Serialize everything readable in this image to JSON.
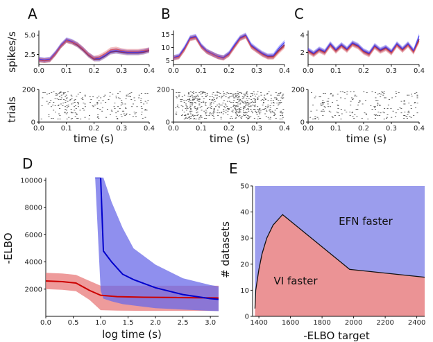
{
  "chart_data": [
    {
      "panel": "A",
      "type": "line",
      "ylabel": "spikes/s",
      "xlim": [
        0,
        0.4
      ],
      "xticks": [
        "0.0",
        "0.1",
        "0.2",
        "0.3",
        "0.4"
      ],
      "ylim": [
        1.2,
        5.6
      ],
      "yticks": [
        "2.5",
        "5.0"
      ],
      "x": [
        0,
        0.02,
        0.04,
        0.06,
        0.08,
        0.1,
        0.12,
        0.14,
        0.16,
        0.18,
        0.2,
        0.22,
        0.24,
        0.26,
        0.28,
        0.3,
        0.32,
        0.34,
        0.36,
        0.38,
        0.4
      ],
      "series": [
        {
          "values": [
            1.8,
            1.7,
            1.8,
            2.6,
            3.6,
            4.3,
            4.1,
            3.7,
            3.1,
            2.4,
            1.9,
            1.9,
            2.3,
            2.8,
            2.9,
            2.8,
            2.7,
            2.7,
            2.7,
            2.8,
            3.0
          ],
          "color": "#7a2a5e"
        },
        {
          "values": [
            1.9,
            1.8,
            1.9,
            2.7,
            3.7,
            4.4,
            4.2,
            3.8,
            3.2,
            2.5,
            2.0,
            2.0,
            2.4,
            2.9,
            3.0,
            2.9,
            2.8,
            2.8,
            2.8,
            2.9,
            3.1
          ],
          "color": "#3a3aff"
        },
        {
          "values": [
            1.8,
            1.7,
            1.8,
            2.6,
            3.6,
            4.3,
            4.1,
            3.8,
            3.2,
            2.5,
            2.0,
            2.2,
            2.6,
            3.1,
            3.2,
            3.0,
            2.9,
            2.9,
            2.9,
            3.0,
            3.1
          ],
          "color": "#e05050"
        }
      ]
    },
    {
      "panel": "B",
      "type": "line",
      "xlim": [
        0,
        0.4
      ],
      "xticks": [
        "0.0",
        "0.1",
        "0.2",
        "0.3",
        "0.4"
      ],
      "ylim": [
        3.5,
        16.5
      ],
      "yticks": [
        "5",
        "10",
        "15"
      ],
      "x": [
        0,
        0.02,
        0.04,
        0.06,
        0.08,
        0.1,
        0.12,
        0.14,
        0.16,
        0.18,
        0.2,
        0.22,
        0.24,
        0.26,
        0.28,
        0.3,
        0.32,
        0.34,
        0.36,
        0.38,
        0.4
      ],
      "series": [
        {
          "values": [
            6.0,
            6.5,
            9.5,
            13.5,
            14.0,
            10.5,
            8.5,
            7.5,
            6.5,
            6.0,
            7.5,
            10.5,
            13.5,
            14.5,
            10.5,
            9.0,
            7.5,
            6.5,
            6.5,
            9.0,
            11.0
          ],
          "color": "#7a2a5e"
        },
        {
          "values": [
            6.2,
            6.8,
            10.0,
            13.8,
            14.3,
            10.8,
            8.7,
            7.6,
            6.6,
            6.2,
            7.8,
            11.0,
            13.8,
            14.8,
            11.0,
            9.3,
            7.8,
            6.8,
            7.0,
            9.8,
            12.0
          ],
          "color": "#3a3aff"
        },
        {
          "values": [
            6.0,
            6.4,
            9.3,
            13.3,
            13.8,
            10.3,
            8.4,
            7.4,
            6.4,
            5.9,
            7.3,
            10.3,
            13.3,
            14.3,
            10.3,
            8.8,
            7.3,
            6.3,
            6.3,
            8.5,
            10.5
          ],
          "color": "#e05050"
        }
      ]
    },
    {
      "panel": "C",
      "type": "line",
      "xlim": [
        0,
        0.4
      ],
      "xticks": [
        "0.0",
        "0.1",
        "0.2",
        "0.3",
        "0.4"
      ],
      "ylim": [
        0.6,
        4.5
      ],
      "yticks": [
        "2",
        "4"
      ],
      "x": [
        0,
        0.02,
        0.04,
        0.06,
        0.08,
        0.1,
        0.12,
        0.14,
        0.16,
        0.18,
        0.2,
        0.22,
        0.24,
        0.26,
        0.28,
        0.3,
        0.32,
        0.34,
        0.36,
        0.38,
        0.4
      ],
      "series": [
        {
          "values": [
            2.2,
            1.8,
            2.3,
            2.0,
            2.9,
            2.2,
            2.8,
            2.3,
            3.0,
            2.7,
            2.1,
            1.8,
            2.7,
            2.2,
            2.5,
            2.0,
            2.9,
            2.3,
            2.9,
            2.1,
            3.5
          ],
          "color": "#7a2a5e"
        },
        {
          "values": [
            2.3,
            1.9,
            2.4,
            2.1,
            3.0,
            2.3,
            2.9,
            2.4,
            3.1,
            2.8,
            2.2,
            1.9,
            2.8,
            2.3,
            2.6,
            2.1,
            3.0,
            2.4,
            3.0,
            2.2,
            3.9
          ],
          "color": "#3a3aff"
        },
        {
          "values": [
            2.1,
            1.7,
            2.2,
            1.9,
            2.8,
            2.1,
            2.7,
            2.2,
            2.9,
            2.6,
            2.0,
            1.7,
            2.6,
            2.1,
            2.4,
            1.9,
            2.8,
            2.2,
            2.8,
            2.0,
            3.3
          ],
          "color": "#e05050"
        }
      ]
    },
    {
      "panel": "A-raster",
      "type": "scatter",
      "ylabel": "trials",
      "xlabel": "time (s)",
      "xlim": [
        0,
        0.4
      ],
      "xticks": [
        "0.0",
        "0.1",
        "0.2",
        "0.3",
        "0.4"
      ],
      "ylim": [
        0,
        200
      ],
      "yticks": [
        "0",
        "200"
      ],
      "rate_profile": [
        1.8,
        1.7,
        1.8,
        2.6,
        3.6,
        4.3,
        4.1,
        3.7,
        3.1,
        2.4,
        1.9,
        1.9,
        2.3,
        2.8,
        2.9,
        2.8,
        2.7,
        2.7,
        2.7,
        2.8,
        3.0
      ],
      "density": 0.35
    },
    {
      "panel": "B-raster",
      "type": "scatter",
      "xlabel": "time (s)",
      "xlim": [
        0,
        0.4
      ],
      "xticks": [
        "0.0",
        "0.1",
        "0.2",
        "0.3",
        "0.4"
      ],
      "ylim": [
        0,
        200
      ],
      "yticks": [
        "0",
        "200"
      ],
      "rate_profile": [
        6.0,
        6.5,
        9.5,
        13.5,
        14.0,
        10.5,
        8.5,
        7.5,
        6.5,
        6.0,
        7.5,
        10.5,
        13.5,
        14.5,
        10.5,
        9.0,
        7.5,
        6.5,
        6.5,
        9.0,
        11.0
      ],
      "density": 0.85
    },
    {
      "panel": "C-raster",
      "type": "scatter",
      "xlabel": "time (s)",
      "xlim": [
        0,
        0.4
      ],
      "xticks": [
        "0.0",
        "0.1",
        "0.2",
        "0.3",
        "0.4"
      ],
      "ylim": [
        0,
        200
      ],
      "yticks": [
        "0",
        "200"
      ],
      "rate_profile": [
        2.2,
        1.8,
        2.3,
        2.0,
        2.9,
        2.2,
        2.8,
        2.3,
        3.0,
        2.7,
        2.1,
        1.8,
        2.7,
        2.2,
        2.5,
        2.0,
        2.9,
        2.3,
        2.9,
        2.1,
        3.5
      ],
      "density": 0.3
    },
    {
      "panel": "D",
      "type": "line",
      "xlabel": "log time (s)",
      "ylabel": "-ELBO",
      "xlim": [
        0,
        3.15
      ],
      "xticks": [
        "0.0",
        "0.5",
        "1.0",
        "1.5",
        "2.0",
        "2.5",
        "3.0"
      ],
      "ylim": [
        0,
        10200
      ],
      "yticks": [
        "2000",
        "4000",
        "6000",
        "8000",
        "10000"
      ],
      "series": [
        {
          "color": "#0000cc",
          "band_color": "#6a6ae8",
          "x": [
            0.9,
            1.0,
            1.05,
            1.2,
            1.4,
            1.6,
            2.0,
            2.5,
            3.0,
            3.15
          ],
          "values": [
            10200,
            10200,
            4800,
            4000,
            3100,
            2700,
            2100,
            1600,
            1300,
            1250
          ],
          "upper": [
            10200,
            10200,
            10200,
            8400,
            6500,
            5000,
            3800,
            2800,
            2300,
            2200
          ],
          "lower": [
            10200,
            1900,
            1300,
            1100,
            900,
            800,
            600,
            500,
            400,
            380
          ]
        },
        {
          "color": "#cc0000",
          "band_color": "#e87a7a",
          "x": [
            0,
            0.3,
            0.55,
            0.8,
            1.0,
            1.3,
            1.8,
            2.4,
            3.0,
            3.15
          ],
          "values": [
            2600,
            2550,
            2450,
            1900,
            1550,
            1450,
            1400,
            1380,
            1360,
            1350
          ],
          "upper": [
            3200,
            3150,
            3050,
            2600,
            2250,
            2250,
            2250,
            2250,
            2250,
            2250
          ],
          "lower": [
            2000,
            1950,
            1850,
            1200,
            450,
            420,
            400,
            400,
            400,
            400
          ]
        }
      ]
    },
    {
      "panel": "E",
      "type": "area",
      "xlabel": "-ELBO target",
      "ylabel": "# datasets",
      "xlim": [
        1360,
        2450
      ],
      "xticks": [
        "1400",
        "1600",
        "1800",
        "2000",
        "2200",
        "2400"
      ],
      "ylim": [
        0,
        50
      ],
      "yticks": [
        "0",
        "10",
        "20",
        "30",
        "40",
        "50"
      ],
      "boundary": {
        "x": [
          1375,
          1380,
          1400,
          1420,
          1450,
          1490,
          1550,
          1975,
          2450
        ],
        "y": [
          3,
          10,
          18,
          24,
          30,
          35,
          39,
          18,
          15
        ]
      },
      "regions": [
        {
          "label": "EFN faster",
          "color": "#9b9ded"
        },
        {
          "label": "VI faster",
          "color": "#eb9395"
        }
      ]
    }
  ],
  "panel_labels": [
    "A",
    "B",
    "C",
    "D",
    "E"
  ],
  "colors": {
    "red": "#cc0000",
    "blue": "#0000cc",
    "purple": "#7a2a5e"
  }
}
